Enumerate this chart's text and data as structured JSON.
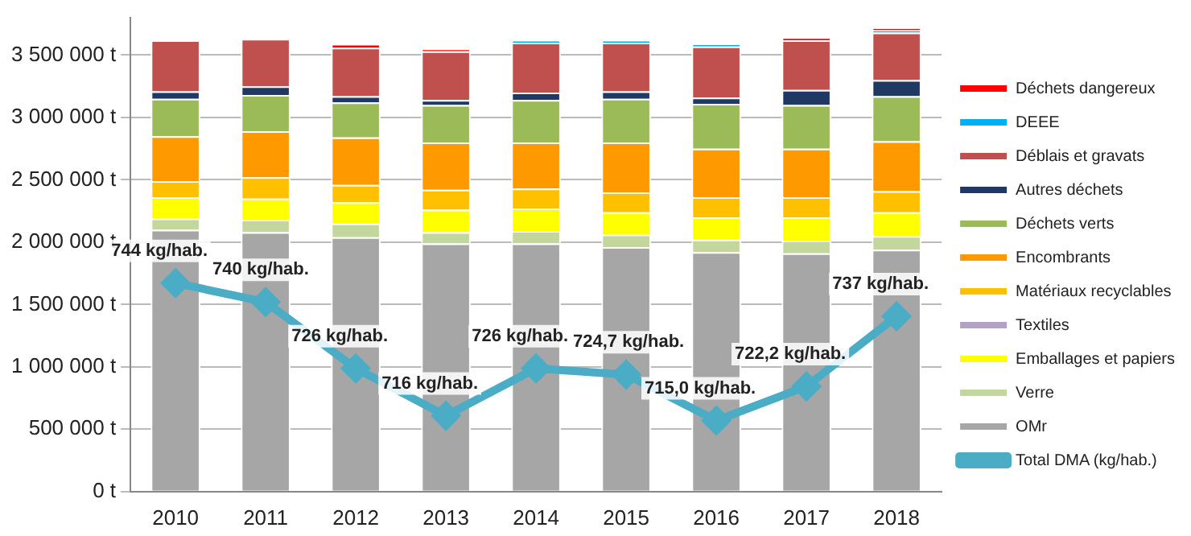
{
  "chart_data": {
    "type": "bar",
    "stacked": true,
    "categories": [
      "2010",
      "2011",
      "2012",
      "2013",
      "2014",
      "2015",
      "2016",
      "2017",
      "2018"
    ],
    "series": [
      {
        "name": "Total DMA (kg/hab.)",
        "type": "line",
        "axis": "y2",
        "color": "#4bacc6",
        "values": [
          744,
          740,
          726,
          716,
          726,
          724.7,
          715.0,
          722.2,
          737
        ],
        "value_labels": [
          "744 kg/hab.",
          "740 kg/hab.",
          "726 kg/hab.",
          "716 kg/hab.",
          "726 kg/hab.",
          "724,7 kg/hab.",
          "715,0 kg/hab.",
          "722,2 kg/hab.",
          "737 kg/hab."
        ]
      },
      {
        "name": "OMr",
        "color": "#a6a6a6",
        "values": [
          2100000,
          2080000,
          2040000,
          1990000,
          1990000,
          1960000,
          1920000,
          1910000,
          1940000
        ]
      },
      {
        "name": "Verre",
        "color": "#c3d69b",
        "values": [
          90000,
          100000,
          110000,
          90000,
          100000,
          100000,
          100000,
          100000,
          110000
        ]
      },
      {
        "name": "Emballages et papiers",
        "color": "#ffff00",
        "values": [
          170000,
          170000,
          170000,
          180000,
          180000,
          180000,
          180000,
          190000,
          190000
        ]
      },
      {
        "name": "Textiles",
        "color": "#b3a2c7",
        "values": [
          0,
          0,
          0,
          0,
          0,
          0,
          0,
          0,
          0
        ]
      },
      {
        "name": "Matériaux recyclables",
        "color": "#ffc000",
        "values": [
          130000,
          170000,
          140000,
          160000,
          160000,
          160000,
          160000,
          160000,
          170000
        ]
      },
      {
        "name": "Encombrants",
        "color": "#ff9900",
        "values": [
          360000,
          370000,
          380000,
          380000,
          370000,
          400000,
          390000,
          390000,
          400000
        ]
      },
      {
        "name": "Déchets verts",
        "color": "#9bbb59",
        "values": [
          300000,
          290000,
          280000,
          300000,
          340000,
          350000,
          360000,
          350000,
          360000
        ]
      },
      {
        "name": "Autres déchets",
        "color": "#1f3864",
        "values": [
          60000,
          70000,
          50000,
          40000,
          60000,
          60000,
          50000,
          120000,
          130000
        ]
      },
      {
        "name": "Déblais et gravats",
        "color": "#c0504d",
        "values": [
          410000,
          380000,
          390000,
          390000,
          400000,
          390000,
          410000,
          400000,
          380000
        ]
      },
      {
        "name": "DEEE",
        "color": "#00b0f0",
        "values": [
          0,
          0,
          0,
          0,
          20000,
          20000,
          20000,
          0,
          20000
        ]
      },
      {
        "name": "Déchets dangereux",
        "color": "#ff0000",
        "values": [
          0,
          0,
          30000,
          20000,
          0,
          0,
          0,
          20000,
          20000
        ]
      }
    ],
    "ylim": [
      0,
      3800000
    ],
    "yticks": [
      {
        "value": 0,
        "label": "0 t"
      },
      {
        "value": 500000,
        "label": "500 000 t"
      },
      {
        "value": 1000000,
        "label": "1 000 000 t"
      },
      {
        "value": 1500000,
        "label": "1 500 000 t"
      },
      {
        "value": 2000000,
        "label": "2 000 000 t"
      },
      {
        "value": 2500000,
        "label": "2 500 000 t"
      },
      {
        "value": 3000000,
        "label": "3 000 000 t"
      },
      {
        "value": 3500000,
        "label": "3 500 000 t"
      }
    ],
    "y2lim": [
      700,
      800
    ],
    "grid": "y",
    "legend": "right",
    "marker": "diamond",
    "line_style": "solid"
  }
}
